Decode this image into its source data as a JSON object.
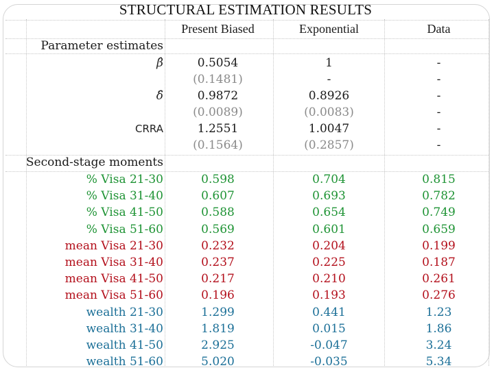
{
  "title": "STRUCTURAL ESTIMATION RESULTS",
  "columns": [
    "Present Biased",
    "Exponential",
    "Data"
  ],
  "section_parameters": "Parameter estimates",
  "section_moments": "Second-stage moments",
  "params": [
    {
      "label": "β̂",
      "pb": "0.5054",
      "exp": "1",
      "data": "-"
    },
    {
      "label": "",
      "pb": "(0.1481)",
      "exp": "-",
      "data": "-"
    },
    {
      "label": "δ̂",
      "pb": "0.9872",
      "exp": "0.8926",
      "data": "-"
    },
    {
      "label": "",
      "pb": "(0.0089)",
      "exp": "(0.0083)",
      "data": "-"
    },
    {
      "label": "CRRA",
      "pb": "1.2551",
      "exp": "1.0047",
      "data": "-"
    },
    {
      "label": "",
      "pb": "(0.1564)",
      "exp": "(0.2857)",
      "data": "-"
    }
  ],
  "moments": [
    {
      "label": "% Visa 21-30",
      "pb": "0.598",
      "exp": "0.704",
      "data": "0.815",
      "color": "#1e9334"
    },
    {
      "label": "% Visa 31-40",
      "pb": "0.607",
      "exp": "0.693",
      "data": "0.782",
      "color": "#1e9334"
    },
    {
      "label": "% Visa 41-50",
      "pb": "0.588",
      "exp": "0.654",
      "data": "0.749",
      "color": "#1e9334"
    },
    {
      "label": "% Visa 51-60",
      "pb": "0.569",
      "exp": "0.601",
      "data": "0.659",
      "color": "#1e9334"
    },
    {
      "label": "mean Visa 21-30",
      "pb": "0.232",
      "exp": "0.204",
      "data": "0.199",
      "color": "#b3101c"
    },
    {
      "label": "mean Visa 31-40",
      "pb": "0.237",
      "exp": "0.225",
      "data": "0.187",
      "color": "#b3101c"
    },
    {
      "label": "mean Visa 41-50",
      "pb": "0.217",
      "exp": "0.210",
      "data": "0.261",
      "color": "#b3101c"
    },
    {
      "label": "mean Visa 51-60",
      "pb": "0.196",
      "exp": "0.193",
      "data": "0.276",
      "color": "#b3101c"
    },
    {
      "label": "wealth 21-30",
      "pb": "1.299",
      "exp": "0.441",
      "data": "1.23",
      "color": "#1b6f97"
    },
    {
      "label": "wealth 31-40",
      "pb": "1.819",
      "exp": "0.015",
      "data": "1.86",
      "color": "#1b6f97"
    },
    {
      "label": "wealth 41-50",
      "pb": "2.925",
      "exp": "-0.047",
      "data": "3.24",
      "color": "#1b6f97"
    },
    {
      "label": "wealth 51-60",
      "pb": "5.020",
      "exp": "-0.035",
      "data": "5.34",
      "color": "#1b6f97"
    }
  ]
}
